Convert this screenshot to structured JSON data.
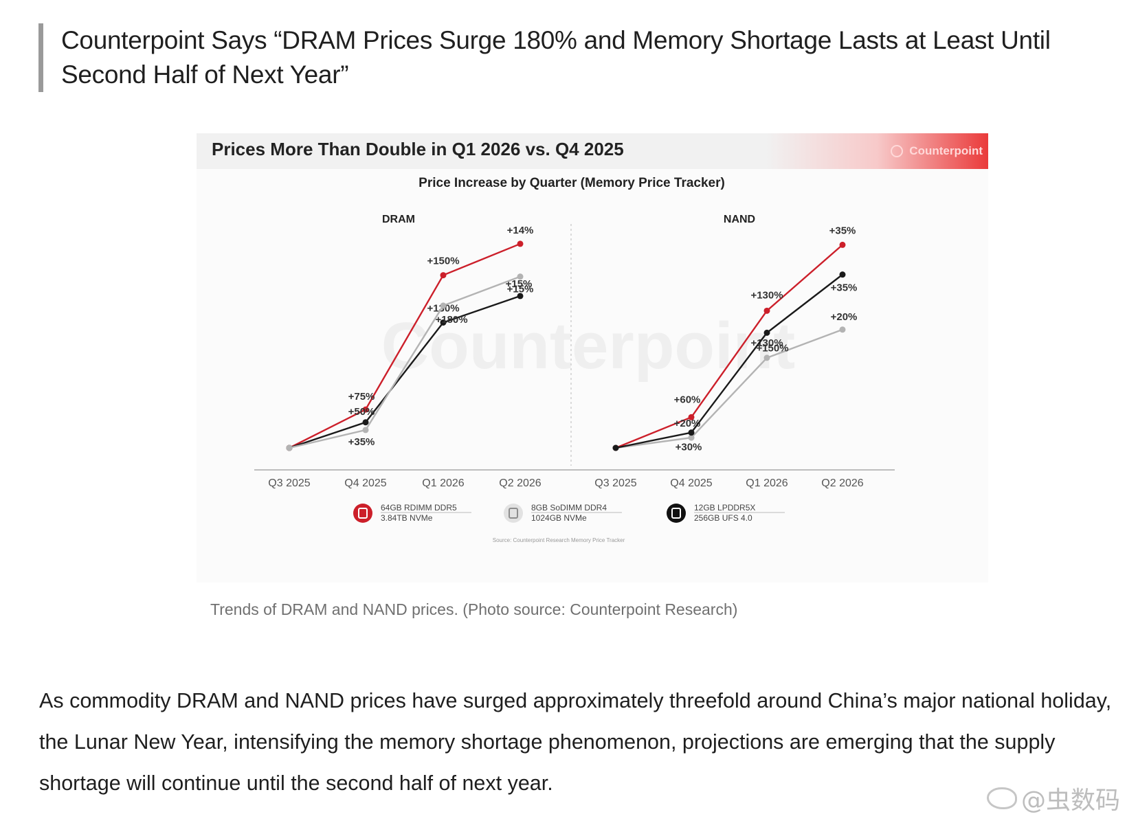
{
  "quote": "Counterpoint Says “DRAM Prices Surge 180% and Memory Shortage Lasts at Least Until Second Half of Next Year”",
  "figure": {
    "header_title": "Prices More Than Double in Q1 2026 vs. Q4 2025",
    "brand": "Counterpoint",
    "subtitle": "Price Increase by Quarter (Memory Price Tracker)",
    "source": "Source: Counterpoint Research Memory Price Tracker",
    "watermark_text": "Counterpoint"
  },
  "chart_data": [
    {
      "type": "line",
      "title": "DRAM",
      "categories": [
        "Q3 2025",
        "Q4 2025",
        "Q1 2026",
        "Q2 2026"
      ],
      "y_scale": "relative price index (not printed)",
      "grid": false,
      "legend_position": "bottom",
      "series": [
        {
          "name": "64GB RDIMM DDR5",
          "color": "#cc1f2a",
          "values": [
            100,
            175,
            437.5,
            498.75
          ],
          "labels": [
            "",
            "+75%",
            "+150%",
            "+14%"
          ]
        },
        {
          "name": "8GB SoDIMM DDR4",
          "color": "#1a1a1a",
          "values": [
            100,
            150,
            345,
            396.75
          ],
          "labels": [
            "",
            "+50%",
            "+130%",
            "+15%"
          ]
        },
        {
          "name": "",
          "color": "#b3b3b3",
          "values": [
            100,
            135,
            378,
            434.7
          ],
          "labels": [
            "",
            "+35%",
            "+180%",
            "+15%"
          ]
        }
      ]
    },
    {
      "type": "line",
      "title": "NAND",
      "categories": [
        "Q3 2025",
        "Q4 2025",
        "Q1 2026",
        "Q2 2026"
      ],
      "y_scale": "relative price index (not printed)",
      "grid": false,
      "legend_position": "bottom",
      "series": [
        {
          "name": "3.84TB NVMe",
          "color": "#cc1f2a",
          "values": [
            100,
            160,
            368,
            496.8
          ],
          "labels": [
            "",
            "+60%",
            "+130%",
            "+35%"
          ]
        },
        {
          "name": "1024GB NVMe",
          "color": "#b3b3b3",
          "values": [
            100,
            120,
            276,
            331.2
          ],
          "labels": [
            "",
            "+20%",
            "+130%",
            "+20%"
          ]
        },
        {
          "name": "256GB UFS 4.0",
          "color": "#1a1a1a",
          "values": [
            100,
            130,
            325,
            438.75
          ],
          "labels": [
            "",
            "+30%",
            "+150%",
            "+35%"
          ]
        }
      ]
    }
  ],
  "legend": [
    {
      "line1": "64GB RDIMM DDR5",
      "line2": "3.84TB NVMe",
      "color": "#cc1f2a",
      "icon": "memory-chip-icon"
    },
    {
      "line1": "8GB SoDIMM DDR4",
      "line2": "1024GB NVMe",
      "color": "#b3b3b3",
      "icon": "ssd-icon"
    },
    {
      "line1": "12GB LPDDR5X",
      "line2": "256GB UFS 4.0",
      "color": "#111111",
      "icon": "phone-icon"
    }
  ],
  "caption": "Trends of DRAM and NAND prices. (Photo source: Counterpoint Research)",
  "body": "As commodity DRAM and NAND prices have surged approximately threefold around China’s major national holiday, the Lunar New Year, intensifying the memory shortage phenomenon, projections are emerging that the supply shortage will continue until the second half of next year.",
  "weibo_watermark": "@虫数码"
}
